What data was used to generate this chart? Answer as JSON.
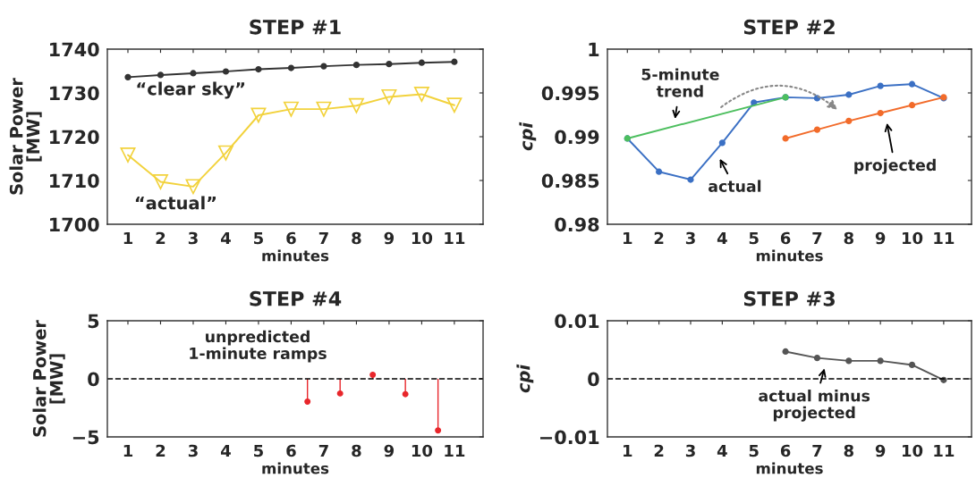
{
  "chart_data": [
    {
      "type": "line",
      "title": "STEP #1",
      "xlabel": "minutes",
      "ylabel": "Solar Power\n[MW]",
      "xlim": [
        0.37,
        11.88
      ],
      "xticks": [
        1,
        2,
        3,
        4,
        5,
        6,
        7,
        8,
        9,
        10,
        11
      ],
      "ylim": [
        1700,
        1740
      ],
      "yticks": [
        1700,
        1710,
        1720,
        1730,
        1740
      ],
      "grid": false,
      "legend": false,
      "series": [
        {
          "color": "#333333",
          "marker": "circle",
          "x": [
            1,
            2,
            3,
            4,
            5,
            6,
            7,
            8,
            9,
            10,
            11
          ],
          "values": [
            1733.6,
            1734.1,
            1734.5,
            1734.9,
            1735.4,
            1735.7,
            1736.1,
            1736.4,
            1736.6,
            1736.9,
            1737.1
          ]
        },
        {
          "color": "#f2d23c",
          "marker": "triangle",
          "x": [
            1,
            2,
            3,
            4,
            5,
            6,
            7,
            8,
            9,
            10,
            11
          ],
          "values": [
            1715.8,
            1709.7,
            1708.6,
            1716.3,
            1724.9,
            1726.3,
            1726.3,
            1727.1,
            1729.1,
            1729.7,
            1727.2
          ]
        }
      ],
      "annotations": [
        "“clear sky”",
        "“actual”"
      ]
    },
    {
      "type": "line",
      "title": "STEP #2",
      "xlabel": "minutes",
      "ylabel": "cpi",
      "xlim": [
        0.37,
        11.88
      ],
      "xticks": [
        1,
        2,
        3,
        4,
        5,
        6,
        7,
        8,
        9,
        10,
        11
      ],
      "ylim": [
        0.98,
        1
      ],
      "yticks": [
        0.98,
        0.985,
        0.99,
        0.995,
        1
      ],
      "grid": false,
      "legend": false,
      "series": [
        {
          "color": "#3b70c4",
          "marker": "circle",
          "x": [
            1,
            2,
            3,
            4,
            5,
            6,
            7,
            8,
            9,
            10,
            11
          ],
          "values": [
            0.9898,
            0.986,
            0.9851,
            0.9893,
            0.9939,
            0.9945,
            0.9944,
            0.9948,
            0.9958,
            0.996,
            0.9944
          ]
        },
        {
          "color": "#4dbf5f",
          "marker": "circle",
          "x": [
            1,
            6
          ],
          "values": [
            0.9898,
            0.9945
          ]
        },
        {
          "color": "#f26b2a",
          "marker": "circle",
          "x": [
            6,
            7,
            8,
            9,
            10,
            11
          ],
          "values": [
            0.9898,
            0.9908,
            0.9918,
            0.9927,
            0.9936,
            0.9945
          ]
        }
      ],
      "annotations": [
        "5-minute\ntrend",
        "actual",
        "projected"
      ]
    },
    {
      "type": "lollipop",
      "title": "STEP #4",
      "xlabel": "minutes",
      "ylabel": "Solar Power\n[MW]",
      "xlim": [
        0.37,
        11.88
      ],
      "xticks": [
        1,
        2,
        3,
        4,
        5,
        6,
        7,
        8,
        9,
        10,
        11
      ],
      "ylim": [
        -5,
        5
      ],
      "yticks": [
        {
          "value": -5,
          "label": "−5"
        },
        0,
        5
      ],
      "grid": false,
      "legend": false,
      "series": [
        {
          "color": "#e8262b",
          "marker": "circle",
          "x": [
            6.5,
            7.5,
            8.5,
            9.5,
            10.5
          ],
          "values": [
            -1.96,
            -1.26,
            0.35,
            -1.32,
            -4.44
          ]
        }
      ],
      "ref_lines": [
        {
          "axis": "y",
          "value": 0,
          "color": "#000000",
          "line_style": "dashed"
        }
      ],
      "annotations": [
        "unpredicted\n1-minute ramps"
      ]
    },
    {
      "type": "line",
      "title": "STEP #3",
      "xlabel": "minutes",
      "ylabel": "cpi",
      "xlim": [
        0.37,
        11.88
      ],
      "xticks": [
        1,
        2,
        3,
        4,
        5,
        6,
        7,
        8,
        9,
        10,
        11
      ],
      "ylim": [
        -0.01,
        0.01
      ],
      "yticks": [
        {
          "value": -0.01,
          "label": "−0.01"
        },
        0,
        0.01
      ],
      "grid": false,
      "legend": false,
      "series": [
        {
          "color": "#555555",
          "marker": "circle",
          "x": [
            6,
            7,
            8,
            9,
            10,
            11
          ],
          "values": [
            0.0047,
            0.0036,
            0.0031,
            0.0031,
            0.0024,
            -0.0002
          ]
        }
      ],
      "ref_lines": [
        {
          "axis": "y",
          "value": 0,
          "color": "#000000",
          "line_style": "dashed"
        }
      ],
      "annotations": [
        "actual minus\nprojected"
      ]
    }
  ]
}
